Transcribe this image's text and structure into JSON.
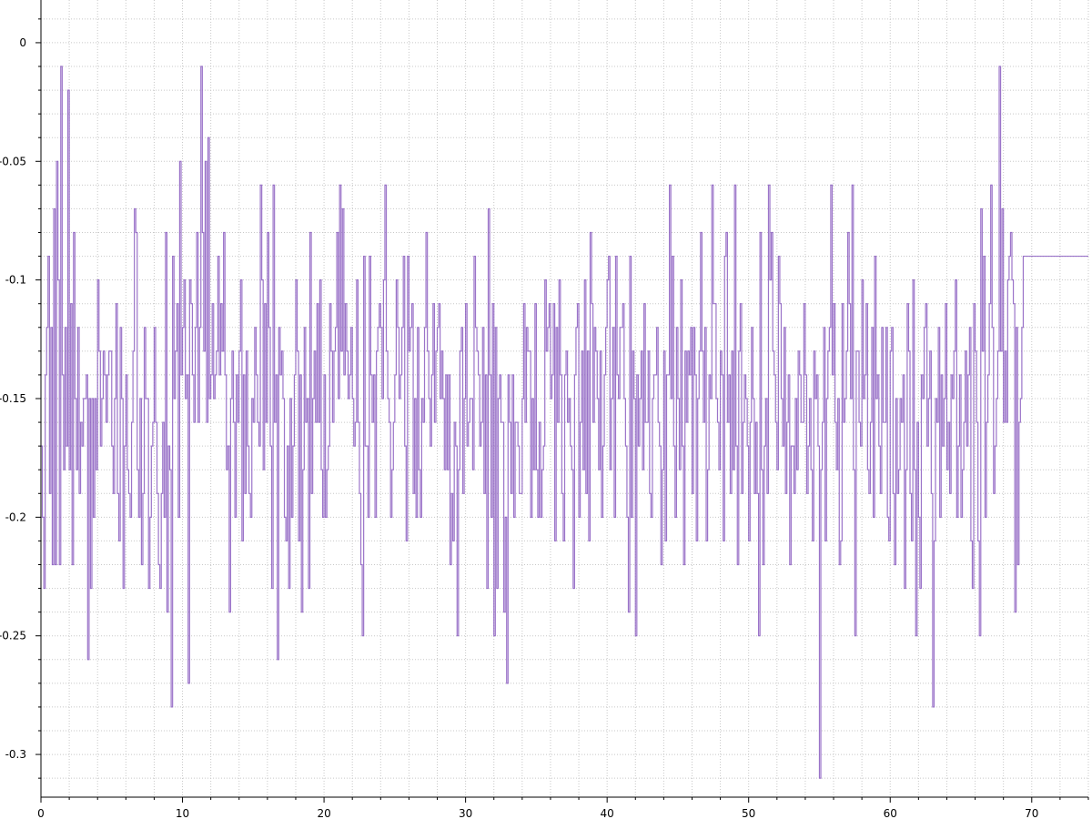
{
  "chart_data": {
    "type": "line",
    "step": true,
    "title": "",
    "xlabel": "",
    "ylabel": "",
    "xlim": [
      0,
      74
    ],
    "ylim": [
      -0.318,
      0.018
    ],
    "x_ticks": [
      0,
      10,
      20,
      30,
      40,
      50,
      60,
      70
    ],
    "x_tick_labels": [
      "0",
      "10",
      "20",
      "30",
      "40",
      "50",
      "60",
      "70"
    ],
    "y_ticks": [
      0,
      -0.05,
      -0.1,
      -0.15,
      -0.2,
      -0.25,
      -0.3
    ],
    "y_tick_labels": [
      "0",
      "-0.05",
      "-0.1",
      "-0.15",
      "-0.2",
      "-0.25",
      "-0.3"
    ],
    "grid": true,
    "legend": false,
    "line_color": "#8a5cc0",
    "series": [
      {
        "x_start": 0,
        "x_step": 0.1,
        "values": [
          -0.17,
          -0.2,
          -0.23,
          -0.14,
          -0.12,
          -0.09,
          -0.19,
          -0.12,
          -0.22,
          -0.07,
          -0.22,
          -0.05,
          -0.1,
          -0.22,
          -0.01,
          -0.14,
          -0.18,
          -0.12,
          -0.17,
          -0.02,
          -0.18,
          -0.11,
          -0.22,
          -0.08,
          -0.15,
          -0.18,
          -0.12,
          -0.19,
          -0.16,
          -0.17,
          -0.15,
          -0.15,
          -0.14,
          -0.26,
          -0.15,
          -0.23,
          -0.15,
          -0.2,
          -0.15,
          -0.18,
          -0.1,
          -0.13,
          -0.17,
          -0.15,
          -0.13,
          -0.14,
          -0.16,
          -0.14,
          -0.13,
          -0.13,
          -0.17,
          -0.19,
          -0.15,
          -0.11,
          -0.19,
          -0.21,
          -0.12,
          -0.15,
          -0.23,
          -0.17,
          -0.14,
          -0.18,
          -0.19,
          -0.2,
          -0.16,
          -0.13,
          -0.07,
          -0.08,
          -0.18,
          -0.2,
          -0.15,
          -0.22,
          -0.19,
          -0.12,
          -0.15,
          -0.15,
          -0.23,
          -0.2,
          -0.17,
          -0.16,
          -0.12,
          -0.16,
          -0.19,
          -0.22,
          -0.23,
          -0.19,
          -0.16,
          -0.2,
          -0.08,
          -0.24,
          -0.17,
          -0.18,
          -0.28,
          -0.09,
          -0.15,
          -0.13,
          -0.11,
          -0.2,
          -0.05,
          -0.14,
          -0.12,
          -0.1,
          -0.15,
          -0.14,
          -0.27,
          -0.1,
          -0.11,
          -0.14,
          -0.16,
          -0.12,
          -0.08,
          -0.16,
          -0.12,
          -0.01,
          -0.08,
          -0.13,
          -0.05,
          -0.16,
          -0.04,
          -0.15,
          -0.14,
          -0.11,
          -0.15,
          -0.14,
          -0.13,
          -0.09,
          -0.14,
          -0.11,
          -0.13,
          -0.08,
          -0.14,
          -0.18,
          -0.17,
          -0.24,
          -0.15,
          -0.13,
          -0.16,
          -0.2,
          -0.14,
          -0.16,
          -0.13,
          -0.1,
          -0.21,
          -0.14,
          -0.19,
          -0.13,
          -0.17,
          -0.19,
          -0.2,
          -0.15,
          -0.16,
          -0.12,
          -0.14,
          -0.16,
          -0.17,
          -0.06,
          -0.1,
          -0.18,
          -0.11,
          -0.16,
          -0.08,
          -0.12,
          -0.17,
          -0.23,
          -0.06,
          -0.16,
          -0.14,
          -0.26,
          -0.12,
          -0.14,
          -0.13,
          -0.15,
          -0.2,
          -0.21,
          -0.17,
          -0.23,
          -0.15,
          -0.2,
          -0.17,
          -0.14,
          -0.1,
          -0.13,
          -0.21,
          -0.14,
          -0.24,
          -0.18,
          -0.12,
          -0.16,
          -0.15,
          -0.23,
          -0.08,
          -0.19,
          -0.15,
          -0.13,
          -0.16,
          -0.11,
          -0.16,
          -0.1,
          -0.18,
          -0.2,
          -0.14,
          -0.2,
          -0.18,
          -0.17,
          -0.11,
          -0.13,
          -0.16,
          -0.13,
          -0.12,
          -0.08,
          -0.15,
          -0.06,
          -0.13,
          -0.07,
          -0.14,
          -0.11,
          -0.13,
          -0.15,
          -0.14,
          -0.12,
          -0.15,
          -0.17,
          -0.16,
          -0.1,
          -0.16,
          -0.19,
          -0.22,
          -0.25,
          -0.09,
          -0.17,
          -0.17,
          -0.2,
          -0.09,
          -0.14,
          -0.16,
          -0.14,
          -0.2,
          -0.13,
          -0.12,
          -0.11,
          -0.12,
          -0.15,
          -0.1,
          -0.06,
          -0.13,
          -0.15,
          -0.16,
          -0.2,
          -0.18,
          -0.16,
          -0.14,
          -0.1,
          -0.12,
          -0.15,
          -0.14,
          -0.12,
          -0.09,
          -0.17,
          -0.21,
          -0.09,
          -0.13,
          -0.12,
          -0.11,
          -0.19,
          -0.15,
          -0.2,
          -0.12,
          -0.18,
          -0.2,
          -0.15,
          -0.16,
          -0.12,
          -0.08,
          -0.13,
          -0.15,
          -0.17,
          -0.14,
          -0.11,
          -0.16,
          -0.13,
          -0.12,
          -0.11,
          -0.15,
          -0.13,
          -0.15,
          -0.18,
          -0.14,
          -0.18,
          -0.14,
          -0.22,
          -0.19,
          -0.21,
          -0.16,
          -0.17,
          -0.25,
          -0.18,
          -0.13,
          -0.12,
          -0.19,
          -0.15,
          -0.11,
          -0.17,
          -0.16,
          -0.15,
          -0.15,
          -0.18,
          -0.09,
          -0.12,
          -0.13,
          -0.14,
          -0.17,
          -0.16,
          -0.12,
          -0.19,
          -0.14,
          -0.23,
          -0.07,
          -0.14,
          -0.2,
          -0.11,
          -0.25,
          -0.12,
          -0.23,
          -0.15,
          -0.14,
          -0.16,
          -0.16,
          -0.24,
          -0.2,
          -0.27,
          -0.14,
          -0.16,
          -0.19,
          -0.14,
          -0.2,
          -0.16,
          -0.16,
          -0.17,
          -0.19,
          -0.19,
          -0.15,
          -0.11,
          -0.16,
          -0.12,
          -0.13,
          -0.13,
          -0.2,
          -0.15,
          -0.18,
          -0.11,
          -0.18,
          -0.2,
          -0.16,
          -0.2,
          -0.18,
          -0.17,
          -0.1,
          -0.13,
          -0.12,
          -0.11,
          -0.15,
          -0.14,
          -0.11,
          -0.21,
          -0.12,
          -0.16,
          -0.1,
          -0.14,
          -0.19,
          -0.21,
          -0.14,
          -0.13,
          -0.16,
          -0.15,
          -0.17,
          -0.18,
          -0.23,
          -0.14,
          -0.12,
          -0.11,
          -0.2,
          -0.16,
          -0.13,
          -0.18,
          -0.1,
          -0.19,
          -0.13,
          -0.21,
          -0.08,
          -0.11,
          -0.16,
          -0.12,
          -0.13,
          -0.15,
          -0.18,
          -0.13,
          -0.2,
          -0.17,
          -0.14,
          -0.12,
          -0.1,
          -0.09,
          -0.18,
          -0.15,
          -0.12,
          -0.2,
          -0.09,
          -0.14,
          -0.15,
          -0.12,
          -0.12,
          -0.11,
          -0.15,
          -0.17,
          -0.2,
          -0.24,
          -0.09,
          -0.2,
          -0.13,
          -0.15,
          -0.25,
          -0.14,
          -0.17,
          -0.15,
          -0.13,
          -0.18,
          -0.11,
          -0.16,
          -0.16,
          -0.13,
          -0.19,
          -0.2,
          -0.15,
          -0.14,
          -0.14,
          -0.12,
          -0.16,
          -0.17,
          -0.22,
          -0.18,
          -0.13,
          -0.21,
          -0.14,
          -0.14,
          -0.06,
          -0.15,
          -0.09,
          -0.17,
          -0.2,
          -0.12,
          -0.15,
          -0.18,
          -0.1,
          -0.17,
          -0.22,
          -0.13,
          -0.16,
          -0.13,
          -0.14,
          -0.12,
          -0.19,
          -0.12,
          -0.14,
          -0.21,
          -0.15,
          -0.13,
          -0.08,
          -0.13,
          -0.16,
          -0.12,
          -0.21,
          -0.18,
          -0.14,
          -0.15,
          -0.06,
          -0.11,
          -0.11,
          -0.15,
          -0.16,
          -0.18,
          -0.13,
          -0.14,
          -0.21,
          -0.09,
          -0.08,
          -0.16,
          -0.14,
          -0.19,
          -0.13,
          -0.18,
          -0.06,
          -0.17,
          -0.22,
          -0.13,
          -0.11,
          -0.19,
          -0.16,
          -0.14,
          -0.15,
          -0.17,
          -0.21,
          -0.16,
          -0.12,
          -0.15,
          -0.19,
          -0.16,
          -0.19,
          -0.25,
          -0.08,
          -0.18,
          -0.22,
          -0.17,
          -0.15,
          -0.19,
          -0.06,
          -0.1,
          -0.08,
          -0.13,
          -0.14,
          -0.16,
          -0.18,
          -0.09,
          -0.11,
          -0.15,
          -0.17,
          -0.12,
          -0.19,
          -0.16,
          -0.14,
          -0.22,
          -0.17,
          -0.17,
          -0.19,
          -0.15,
          -0.18,
          -0.13,
          -0.14,
          -0.16,
          -0.16,
          -0.11,
          -0.14,
          -0.19,
          -0.17,
          -0.15,
          -0.18,
          -0.21,
          -0.13,
          -0.15,
          -0.14,
          -0.17,
          -0.31,
          -0.18,
          -0.16,
          -0.12,
          -0.21,
          -0.15,
          -0.13,
          -0.12,
          -0.06,
          -0.14,
          -0.11,
          -0.16,
          -0.18,
          -0.15,
          -0.22,
          -0.21,
          -0.11,
          -0.16,
          -0.15,
          -0.13,
          -0.08,
          -0.11,
          -0.15,
          -0.06,
          -0.18,
          -0.25,
          -0.13,
          -0.13,
          -0.16,
          -0.17,
          -0.1,
          -0.15,
          -0.14,
          -0.11,
          -0.18,
          -0.19,
          -0.16,
          -0.12,
          -0.2,
          -0.09,
          -0.15,
          -0.14,
          -0.17,
          -0.19,
          -0.12,
          -0.16,
          -0.16,
          -0.12,
          -0.2,
          -0.21,
          -0.13,
          -0.12,
          -0.19,
          -0.22,
          -0.15,
          -0.19,
          -0.18,
          -0.15,
          -0.16,
          -0.14,
          -0.23,
          -0.18,
          -0.11,
          -0.13,
          -0.19,
          -0.21,
          -0.1,
          -0.18,
          -0.25,
          -0.16,
          -0.2,
          -0.23,
          -0.14,
          -0.15,
          -0.12,
          -0.11,
          -0.17,
          -0.15,
          -0.13,
          -0.19,
          -0.28,
          -0.21,
          -0.15,
          -0.16,
          -0.12,
          -0.2,
          -0.14,
          -0.17,
          -0.15,
          -0.11,
          -0.18,
          -0.16,
          -0.19,
          -0.14,
          -0.15,
          -0.13,
          -0.1,
          -0.2,
          -0.17,
          -0.14,
          -0.2,
          -0.18,
          -0.16,
          -0.13,
          -0.17,
          -0.14,
          -0.12,
          -0.21,
          -0.23,
          -0.11,
          -0.13,
          -0.16,
          -0.21,
          -0.25,
          -0.07,
          -0.13,
          -0.09,
          -0.2,
          -0.16,
          -0.14,
          -0.11,
          -0.06,
          -0.12,
          -0.19,
          -0.17,
          -0.15,
          -0.13,
          -0.01,
          -0.13,
          -0.07,
          -0.16,
          -0.13,
          -0.16,
          -0.1,
          -0.09,
          -0.08,
          -0.1,
          -0.11,
          -0.24,
          -0.12,
          -0.22,
          -0.16,
          -0.15,
          -0.12,
          -0.09
        ]
      }
    ]
  }
}
